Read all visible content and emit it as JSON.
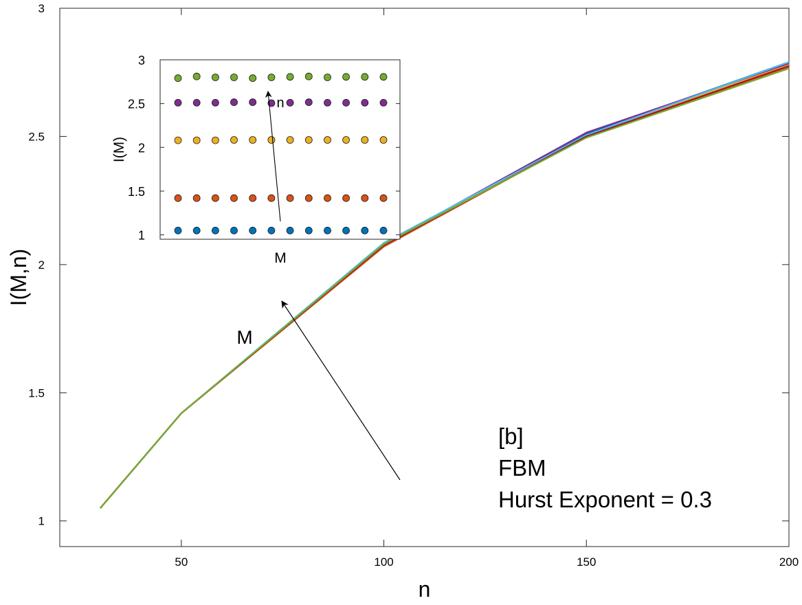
{
  "chart_data": [
    {
      "type": "line",
      "xlabel": "n",
      "ylabel": "I(M,n)",
      "xlim": [
        20,
        200
      ],
      "ylim": [
        0.9,
        3
      ],
      "xticks": [
        50,
        100,
        150,
        200
      ],
      "xtick_labels": [
        "50",
        "100",
        "150",
        "200"
      ],
      "yticks": [
        1,
        1.5,
        2,
        2.5,
        3
      ],
      "ytick_labels": [
        "1",
        "1.5",
        "2",
        "2.5",
        "3"
      ],
      "grid": false,
      "box": true,
      "x": [
        30,
        50,
        100,
        150,
        200
      ],
      "series": [
        {
          "color": "#0072BD",
          "values": [
            1.05,
            1.42,
            2.08,
            2.51,
            2.79
          ]
        },
        {
          "color": "#D95319",
          "values": [
            1.05,
            1.42,
            2.07,
            2.5,
            2.77
          ]
        },
        {
          "color": "#EDB120",
          "values": [
            1.05,
            1.42,
            2.075,
            2.505,
            2.78
          ]
        },
        {
          "color": "#7E2F8E",
          "values": [
            1.05,
            1.42,
            2.08,
            2.515,
            2.785
          ]
        },
        {
          "color": "#4DBEEE",
          "values": [
            1.05,
            1.42,
            2.085,
            2.505,
            2.79
          ]
        },
        {
          "color": "#A2142F",
          "values": [
            1.05,
            1.42,
            2.075,
            2.5,
            2.775
          ]
        },
        {
          "color": "#77AC30",
          "values": [
            1.05,
            1.42,
            2.08,
            2.495,
            2.765
          ]
        }
      ],
      "annotations": {
        "label_lines": [
          "[b]",
          "FBM",
          "Hurst Exponent = 0.3"
        ],
        "arrow_label": "M"
      }
    },
    {
      "type": "scatter",
      "xlabel": "M",
      "ylabel": "I(M)",
      "ylim": [
        0.95,
        3
      ],
      "yticks": [
        1,
        1.5,
        2,
        2.5,
        3
      ],
      "ytick_labels": [
        "1",
        "1.5",
        "2",
        "2.5",
        "3"
      ],
      "xticks": [],
      "grid": false,
      "box": true,
      "marker_edge_color": "#1a1a1a",
      "x": [
        1,
        2,
        3,
        4,
        5,
        6,
        7,
        8,
        9,
        10,
        11,
        12
      ],
      "series": [
        {
          "color": "#0072BD",
          "values": [
            1.05,
            1.05,
            1.05,
            1.05,
            1.05,
            1.05,
            1.05,
            1.05,
            1.05,
            1.05,
            1.05,
            1.05
          ]
        },
        {
          "color": "#D95319",
          "values": [
            1.42,
            1.42,
            1.42,
            1.42,
            1.42,
            1.42,
            1.42,
            1.42,
            1.42,
            1.42,
            1.42,
            1.42
          ]
        },
        {
          "color": "#EDB120",
          "values": [
            2.08,
            2.08,
            2.08,
            2.085,
            2.085,
            2.085,
            2.085,
            2.085,
            2.085,
            2.085,
            2.085,
            2.085
          ]
        },
        {
          "color": "#7E2F8E",
          "values": [
            2.51,
            2.51,
            2.51,
            2.515,
            2.515,
            2.505,
            2.51,
            2.515,
            2.51,
            2.51,
            2.51,
            2.51
          ]
        },
        {
          "color": "#77AC30",
          "values": [
            2.79,
            2.81,
            2.8,
            2.8,
            2.79,
            2.8,
            2.805,
            2.81,
            2.8,
            2.805,
            2.805,
            2.805
          ]
        }
      ],
      "annotations": {
        "arrow_label": "n"
      }
    }
  ]
}
